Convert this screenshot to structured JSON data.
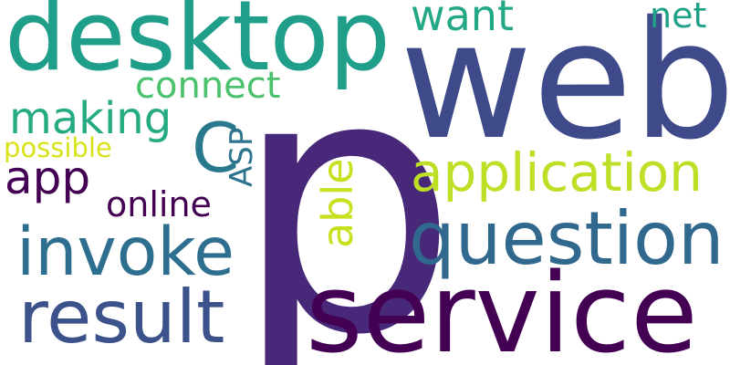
{
  "words": [
    {
      "text": "p",
      "color": "#482878"
    },
    {
      "text": "web",
      "color": "#3e4a89"
    },
    {
      "text": "service",
      "color": "#440154"
    },
    {
      "text": "desktop",
      "color": "#1f9e89"
    },
    {
      "text": "question",
      "color": "#31688e"
    },
    {
      "text": "application",
      "color": "#bddf26"
    },
    {
      "text": "invoke",
      "color": "#2e6e8e"
    },
    {
      "text": "result",
      "color": "#3b528b"
    },
    {
      "text": "making",
      "color": "#25ab82"
    },
    {
      "text": "connect",
      "color": "#4ac16d"
    },
    {
      "text": "want",
      "color": "#22a884"
    },
    {
      "text": "net",
      "color": "#1fa188"
    },
    {
      "text": "app",
      "color": "#440154"
    },
    {
      "text": "online",
      "color": "#440154"
    },
    {
      "text": "C",
      "color": "#2a788e"
    },
    {
      "text": "ASP",
      "color": "#2c738e"
    },
    {
      "text": "able",
      "color": "#c8e020"
    },
    {
      "text": "possible",
      "color": "#d8e219"
    }
  ]
}
